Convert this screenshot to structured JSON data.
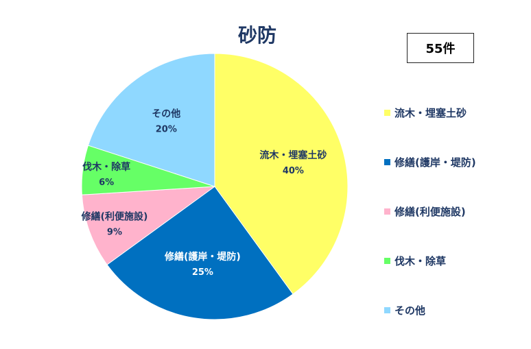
{
  "chart_data": {
    "type": "pie",
    "title": "砂防",
    "total_label": "55件",
    "categories": [
      "流木・埋塞土砂",
      "修繕(護岸・堤防)",
      "修繕(利便施設)",
      "伐木・除草",
      "その他"
    ],
    "values": [
      40,
      25,
      9,
      6,
      20
    ],
    "value_labels": [
      "40%",
      "25%",
      "9%",
      "6%",
      "20%"
    ],
    "colors": [
      "#ffff66",
      "#0070c0",
      "#ffb3cc",
      "#66ff66",
      "#8fd8ff"
    ],
    "label_colors": [
      "#1f3864",
      "#ffffff",
      "#1f3864",
      "#1f3864",
      "#1f3864"
    ],
    "legend_position": "right"
  }
}
